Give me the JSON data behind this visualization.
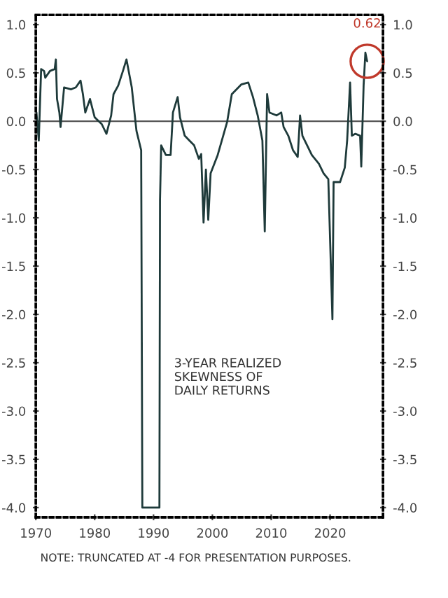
{
  "chart_data": {
    "type": "line",
    "x": [
      1970.1,
      1970.5,
      1970.9,
      1971.4,
      1971.6,
      1972.4,
      1973.2,
      1973.4,
      1973.6,
      1974.0,
      1974.2,
      1974.8,
      1976.0,
      1976.8,
      1977.6,
      1978.0,
      1978.4,
      1979.2,
      1980.0,
      1981.2,
      1982.0,
      1982.8,
      1983.2,
      1984.0,
      1984.8,
      1985.4,
      1986.3,
      1987.1,
      1987.9,
      1988.1,
      1991.0,
      1991.1,
      1991.3,
      1992.1,
      1992.9,
      1993.3,
      1994.1,
      1994.5,
      1995.3,
      1996.1,
      1996.9,
      1997.7,
      1998.1,
      1998.5,
      1998.9,
      1999.3,
      1999.7,
      2000.9,
      2002.5,
      2003.3,
      2004.9,
      2006.1,
      2006.9,
      2007.7,
      2008.5,
      2008.9,
      2009.3,
      2009.7,
      2010.9,
      2011.7,
      2012.1,
      2012.9,
      2013.7,
      2014.5,
      2014.9,
      2015.3,
      2016.1,
      2016.9,
      2018.1,
      2018.9,
      2019.7,
      2020.4,
      2020.6,
      2021.7,
      2022.5,
      2022.9,
      2023.4,
      2023.7,
      2024.3,
      2025.1,
      2025.3,
      2025.7,
      2026.0,
      2026.3
    ],
    "series": [
      {
        "color": "#1e3a3a",
        "values": [
          0.09,
          -0.2,
          0.54,
          0.52,
          0.45,
          0.52,
          0.54,
          0.64,
          0.23,
          0.09,
          -0.06,
          0.35,
          0.33,
          0.35,
          0.42,
          0.28,
          0.09,
          0.23,
          0.04,
          -0.03,
          -0.13,
          0.06,
          0.28,
          0.37,
          0.52,
          0.64,
          0.35,
          -0.1,
          -0.3,
          -4.0,
          -4.0,
          -0.82,
          -0.25,
          -0.35,
          -0.35,
          0.09,
          0.25,
          0.04,
          -0.15,
          -0.2,
          -0.25,
          -0.39,
          -0.34,
          -1.05,
          -0.5,
          -1.02,
          -0.54,
          -0.35,
          -0.01,
          0.28,
          0.38,
          0.4,
          0.25,
          0.06,
          -0.2,
          -1.14,
          0.28,
          0.09,
          0.06,
          0.09,
          -0.06,
          -0.15,
          -0.3,
          -0.37,
          0.06,
          -0.15,
          -0.25,
          -0.35,
          -0.44,
          -0.54,
          -0.6,
          -2.05,
          -0.63,
          -0.63,
          -0.48,
          -0.2,
          0.4,
          -0.15,
          -0.13,
          -0.15,
          -0.47,
          0.37,
          0.71,
          0.62
        ]
      }
    ],
    "xlim": [
      1970,
      2029
    ],
    "xticks": [
      1970,
      1980,
      1990,
      2000,
      2010,
      2020
    ],
    "ylim": [
      -4.1,
      1.1
    ],
    "yticks": [
      {
        "value": 1.0,
        "label": "1.0"
      },
      {
        "value": 0.5,
        "label": "0.5"
      },
      {
        "value": 0,
        "label": "0.0"
      },
      {
        "value": -0.5,
        "label": "-0.5"
      },
      {
        "value": -1.0,
        "label": "-1.0"
      },
      {
        "value": -1.5,
        "label": "-1.5"
      },
      {
        "value": -2.0,
        "label": "-2.0"
      },
      {
        "value": -2.5,
        "label": "-2.5"
      },
      {
        "value": -3.0,
        "label": "-3.0"
      },
      {
        "value": -3.5,
        "label": "-3.5"
      },
      {
        "value": -4.0,
        "label": "-4.0"
      }
    ],
    "y2lim": [
      -4.1,
      1.1
    ],
    "y2ticks": [
      {
        "value": 1.0,
        "label": "1.0"
      },
      {
        "value": 0.5,
        "label": "0.5"
      },
      {
        "value": 0,
        "label": "0.0"
      },
      {
        "value": -0.5,
        "label": "-0.5"
      },
      {
        "value": -1.0,
        "label": "-1.0"
      },
      {
        "value": -1.5,
        "label": "-1.5"
      },
      {
        "value": -2.0,
        "label": "-2.0"
      },
      {
        "value": -2.5,
        "label": "-2.5"
      },
      {
        "value": -3.0,
        "label": "-3.0"
      },
      {
        "value": -3.5,
        "label": "-3.5"
      },
      {
        "value": -4.0,
        "label": "-4.0"
      }
    ],
    "ref_lines": [
      {
        "axis": "y",
        "value": 0,
        "color": "#555555"
      }
    ],
    "annotations": [
      {
        "text": "0.62",
        "x": 2026.3,
        "y": 0.62
      },
      "3-YEAR REALIZED\nSKEWNESS OF\nDAILY RETURNS",
      "NOTE: TRUNCATED AT -4 FOR PRESENTATION PURPOSES."
    ],
    "grid": false,
    "legend": false
  }
}
